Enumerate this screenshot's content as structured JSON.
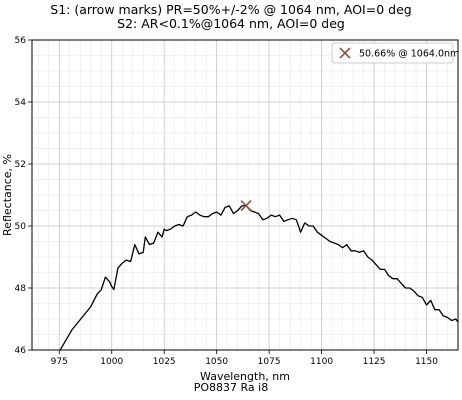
{
  "figure": {
    "title_line1": "S1: (arrow marks) PR=50%+/-2% @ 1064 nm, AOI=0 deg",
    "title_line2": "S2: AR<0.1%@1064 nm, AOI=0 deg",
    "footer": "PO8837 Ra i8"
  },
  "chart_data": {
    "type": "line",
    "xlabel": "Wavelength, nm",
    "ylabel": "Reflectance, %",
    "xlim": [
      962,
      1165
    ],
    "ylim": [
      46,
      56
    ],
    "xticks": [
      975,
      1000,
      1025,
      1050,
      1075,
      1100,
      1125,
      1150
    ],
    "yticks": [
      46,
      48,
      50,
      52,
      54,
      56
    ],
    "grid": true,
    "minor_grid": true,
    "legend_position": "top-right",
    "line_color": "#000000",
    "marker_color": "#8c564b",
    "marker": {
      "x": 1064.0,
      "y": 50.66,
      "label": "50.66% @ 1064.0nm",
      "symbol": "x"
    },
    "series": [
      {
        "x": [
          975,
          978,
          981,
          984,
          987,
          990,
          993,
          995,
          997,
          999,
          1000,
          1001,
          1002,
          1003,
          1005,
          1007,
          1009,
          1011,
          1013,
          1015,
          1016,
          1018,
          1020,
          1022,
          1024,
          1025,
          1026,
          1028,
          1030,
          1032,
          1034,
          1036,
          1038,
          1040,
          1042,
          1044,
          1046,
          1048,
          1050,
          1052,
          1054,
          1056,
          1058,
          1060,
          1062,
          1064,
          1066,
          1068,
          1070,
          1072,
          1074,
          1076,
          1078,
          1080,
          1082,
          1084,
          1086,
          1088,
          1090,
          1091,
          1092,
          1094,
          1096,
          1098,
          1100,
          1102,
          1104,
          1106,
          1108,
          1110,
          1112,
          1114,
          1116,
          1118,
          1120,
          1122,
          1124,
          1126,
          1128,
          1130,
          1132,
          1134,
          1136,
          1138,
          1140,
          1142,
          1144,
          1146,
          1148,
          1150,
          1152,
          1154,
          1156,
          1158,
          1160,
          1162,
          1164,
          1165
        ],
        "y": [
          45.95,
          46.3,
          46.65,
          46.9,
          47.15,
          47.4,
          47.8,
          47.95,
          48.35,
          48.2,
          48.05,
          47.95,
          48.3,
          48.65,
          48.8,
          48.9,
          48.85,
          49.4,
          49.1,
          49.15,
          49.65,
          49.4,
          49.45,
          49.8,
          49.65,
          49.9,
          49.85,
          49.9,
          50.0,
          50.05,
          50.0,
          50.3,
          50.35,
          50.45,
          50.35,
          50.3,
          50.3,
          50.4,
          50.45,
          50.35,
          50.6,
          50.65,
          50.4,
          50.5,
          50.65,
          50.66,
          50.5,
          50.45,
          50.4,
          50.2,
          50.25,
          50.35,
          50.3,
          50.35,
          50.15,
          50.2,
          50.25,
          50.2,
          49.8,
          49.95,
          50.1,
          50.0,
          50.0,
          49.8,
          49.7,
          49.6,
          49.5,
          49.45,
          49.4,
          49.3,
          49.4,
          49.2,
          49.2,
          49.15,
          49.2,
          49.0,
          48.9,
          48.75,
          48.6,
          48.6,
          48.4,
          48.3,
          48.3,
          48.15,
          48.0,
          48.0,
          47.9,
          47.75,
          47.7,
          47.45,
          47.6,
          47.3,
          47.3,
          47.1,
          47.05,
          46.95,
          47.0,
          46.9
        ]
      }
    ]
  }
}
